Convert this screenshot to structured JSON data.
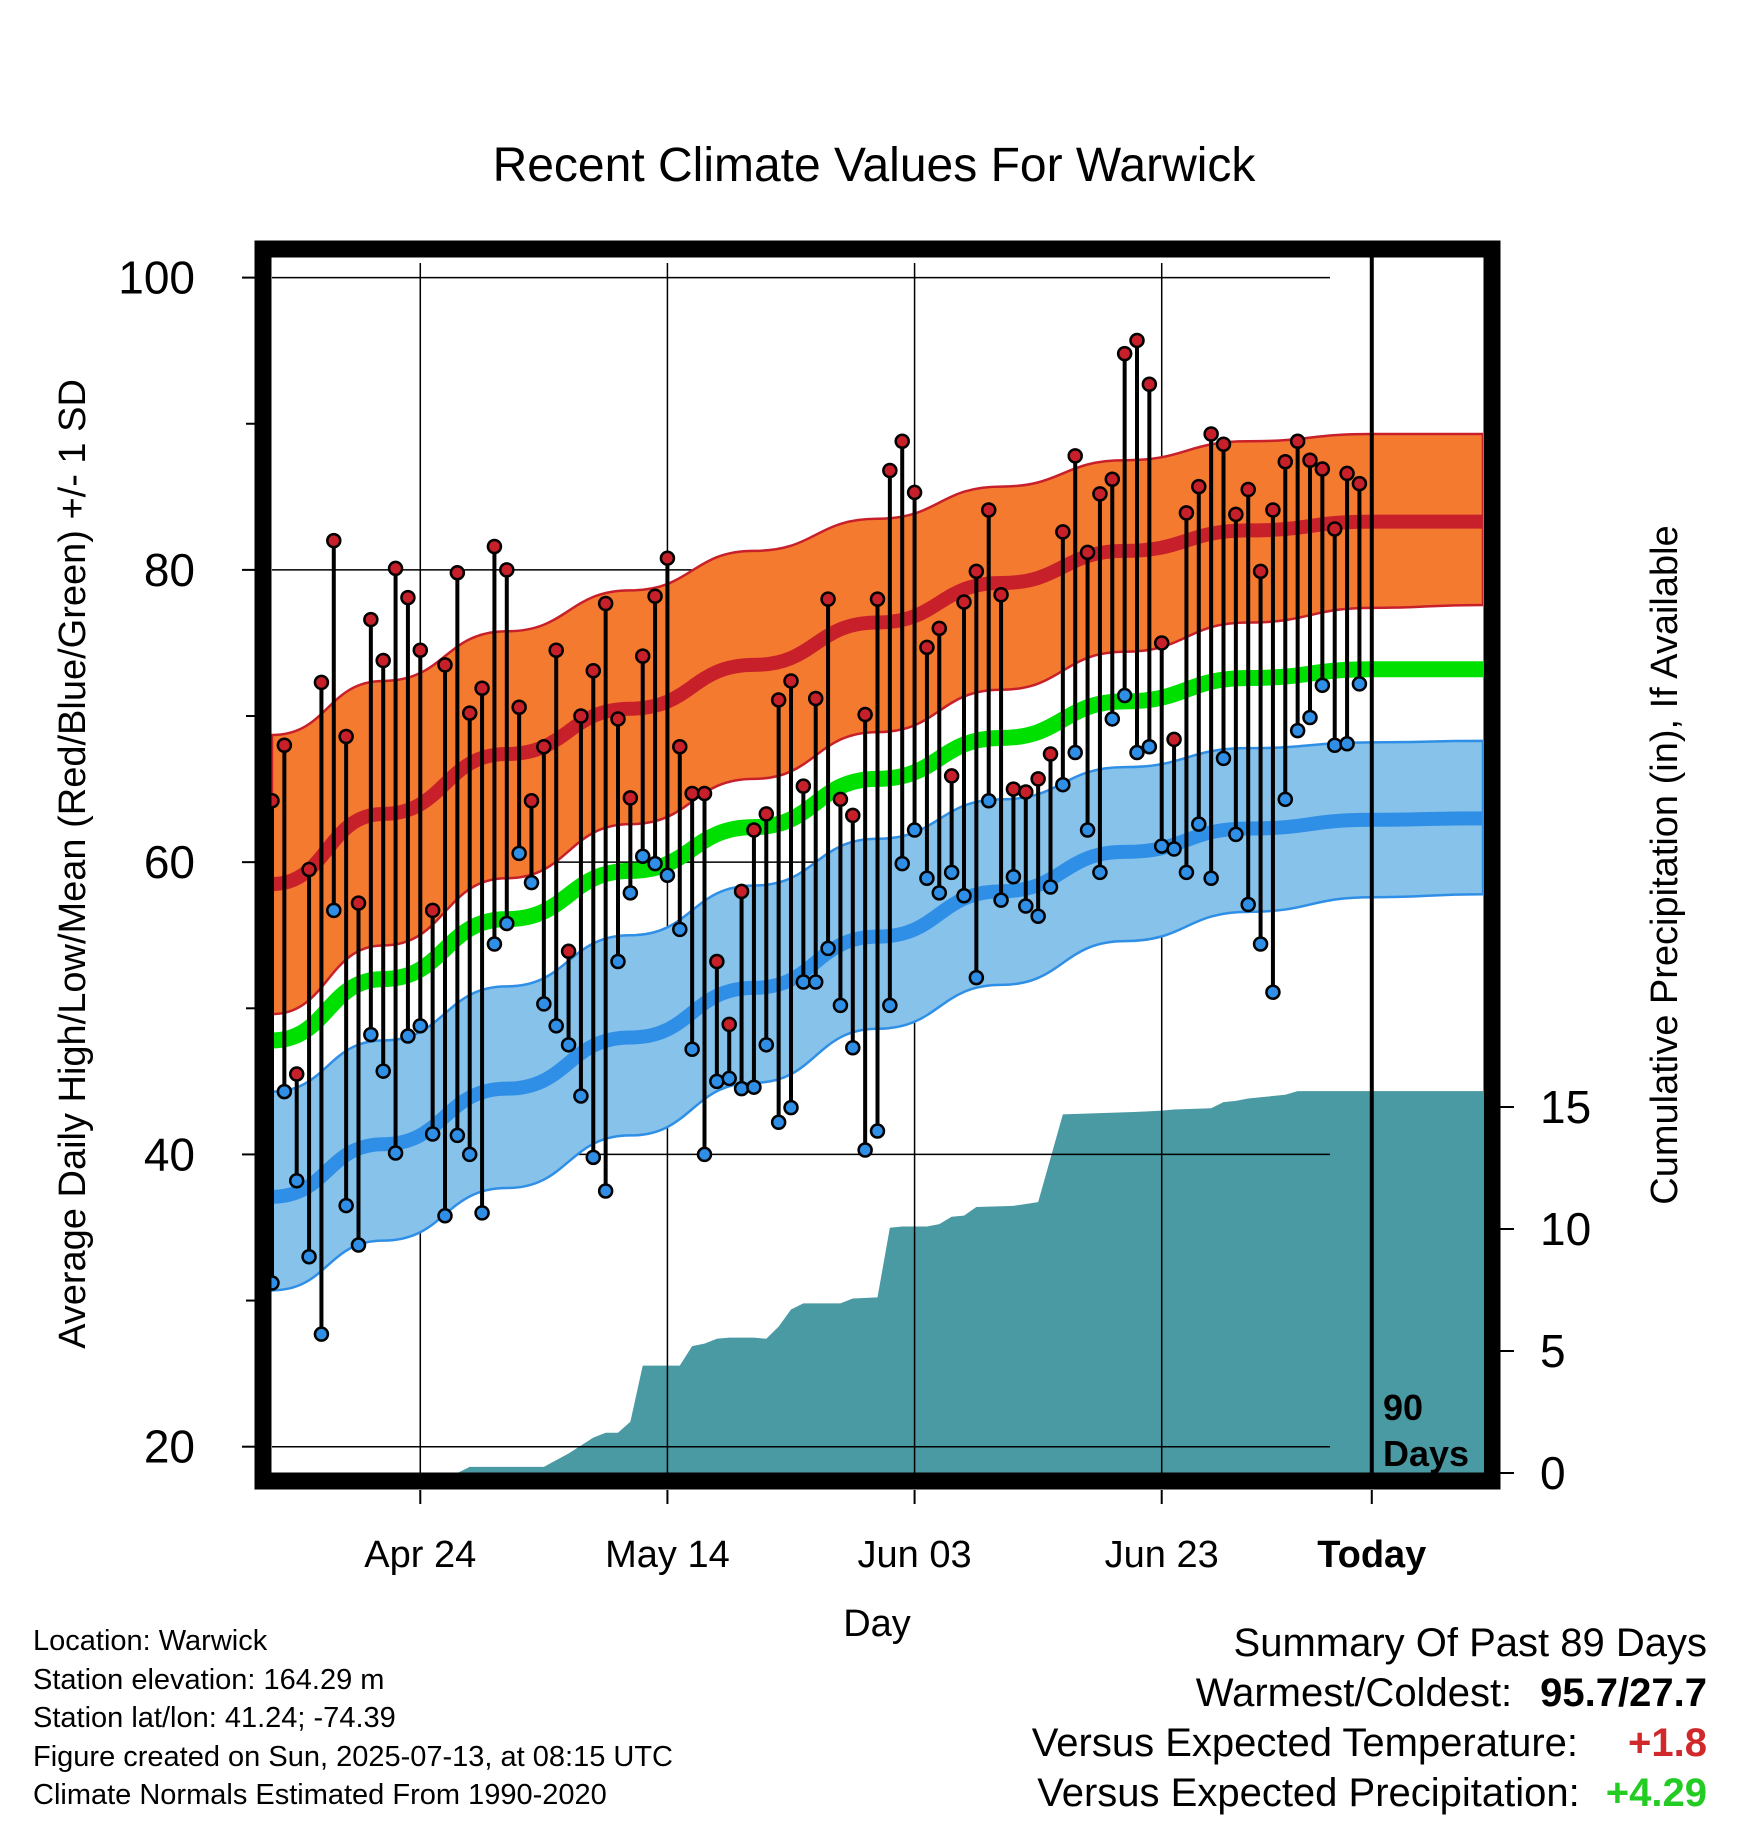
{
  "title": "Recent Climate Values For Warwick",
  "colors": {
    "high": "#c8202a",
    "low": "#2f8fe6",
    "mean": "#00e000",
    "high_band": "#f47a30",
    "low_band": "#86c2ea",
    "precip": "#4a9aa4",
    "positive_temp": "#d0282b",
    "positive_precip": "#22cc22"
  },
  "chart_data": {
    "type": "line",
    "title": "Recent Climate Values For Warwick",
    "xlabel": "Day",
    "ylabel": "Average Daily High/Low/Mean (Red/Blue/Green) +/- 1 SD",
    "y2label": "Cumulative Precipitation (in), If Available",
    "xlim_days": [
      -89,
      9
    ],
    "ylim": [
      18.2,
      101
    ],
    "y2lim": [
      0,
      47
    ],
    "x_ticks": [
      {
        "day": -77,
        "label": "Apr 24"
      },
      {
        "day": -57,
        "label": "May 14"
      },
      {
        "day": -37,
        "label": "Jun 03"
      },
      {
        "day": -17,
        "label": "Jun 23"
      },
      {
        "day": 0,
        "label": "Today"
      }
    ],
    "y_major_ticks": [
      "20",
      "40",
      "60",
      "80",
      "100"
    ],
    "y_minor_ticks": [
      30,
      50,
      70,
      90
    ],
    "y2_ticks": [
      "0",
      "5",
      "10",
      "15"
    ],
    "today_marker": {
      "day": 0,
      "label_line1": "90",
      "label_line2": "Days"
    },
    "normals": {
      "days": [
        -89,
        -80,
        -70,
        -60,
        -50,
        -40,
        -30,
        -20,
        -10,
        0,
        9
      ],
      "high_mean": [
        58.5,
        63.3,
        67.4,
        70.5,
        73.5,
        76.4,
        79.1,
        81.3,
        82.7,
        83.3,
        83.3
      ],
      "high_upper": [
        68.7,
        72.4,
        75.8,
        78.6,
        81.3,
        83.5,
        85.7,
        87.5,
        88.8,
        89.3,
        89.3
      ],
      "high_lower": [
        49.6,
        54.3,
        58.9,
        62.6,
        65.7,
        68.9,
        71.8,
        74.4,
        76.4,
        77.4,
        77.6
      ],
      "mean_line": [
        47.8,
        52.0,
        56.1,
        59.4,
        62.4,
        65.7,
        68.5,
        71.0,
        72.6,
        73.2,
        73.2
      ],
      "low_mean": [
        37.1,
        40.7,
        44.5,
        48.0,
        51.4,
        54.9,
        58.0,
        60.7,
        62.3,
        62.9,
        63.0
      ],
      "low_upper": [
        44.3,
        47.8,
        51.5,
        55.0,
        58.4,
        61.6,
        64.3,
        66.5,
        67.8,
        68.2,
        68.3
      ],
      "low_lower": [
        30.7,
        34.1,
        37.7,
        41.3,
        44.9,
        48.6,
        51.6,
        54.6,
        56.6,
        57.6,
        57.8
      ]
    },
    "daily_high": [
      64.2,
      68.0,
      45.5,
      59.5,
      72.3,
      82.0,
      68.6,
      57.2,
      76.6,
      73.8,
      80.1,
      78.1,
      74.5,
      56.7,
      73.5,
      79.8,
      70.2,
      71.9,
      81.6,
      80.0,
      70.6,
      64.2,
      67.9,
      74.5,
      53.9,
      70.0,
      73.1,
      77.7,
      69.8,
      64.4,
      74.1,
      78.2,
      80.8,
      67.9,
      64.7,
      64.7,
      53.2,
      48.9,
      58.0,
      62.2,
      63.3,
      71.1,
      72.4,
      65.2,
      71.2,
      78.0,
      64.3,
      63.2,
      70.1,
      78.0,
      86.8,
      88.8,
      85.3,
      74.7,
      76.0,
      65.9,
      77.8,
      79.9,
      84.1,
      78.3,
      65.0,
      64.8,
      65.7,
      67.4,
      82.6,
      87.8,
      81.2,
      85.2,
      86.2,
      94.8,
      95.7,
      92.7,
      75.0,
      68.4,
      83.9,
      85.7,
      89.3,
      88.6,
      83.8,
      85.5,
      79.9,
      84.1,
      87.4,
      88.8,
      87.5,
      86.9,
      82.8,
      86.6,
      85.9
    ],
    "daily_low": [
      31.2,
      44.3,
      38.2,
      33.0,
      27.7,
      56.7,
      36.5,
      33.8,
      48.2,
      45.7,
      40.1,
      48.1,
      48.8,
      41.4,
      35.8,
      41.3,
      40.0,
      36.0,
      54.4,
      55.8,
      60.6,
      58.6,
      50.3,
      48.8,
      47.5,
      44.0,
      39.8,
      37.5,
      53.2,
      57.9,
      60.4,
      59.9,
      59.1,
      55.4,
      47.2,
      40.0,
      45.0,
      45.2,
      44.5,
      44.6,
      47.5,
      42.2,
      43.2,
      51.8,
      51.8,
      54.1,
      50.2,
      47.3,
      40.3,
      41.6,
      50.2,
      59.9,
      62.2,
      58.9,
      57.9,
      59.3,
      57.7,
      52.1,
      64.2,
      57.4,
      59.0,
      57.0,
      56.3,
      58.3,
      65.3,
      67.5,
      62.2,
      59.3,
      69.8,
      71.4,
      67.5,
      67.9,
      61.1,
      60.9,
      59.3,
      62.6,
      58.9,
      67.1,
      61.9,
      57.1,
      54.4,
      51.1,
      64.3,
      69.0,
      69.9,
      72.1,
      68.0,
      68.1,
      72.2
    ],
    "precip_cumulative": [
      [
        -89,
        0
      ],
      [
        -74,
        0
      ],
      [
        -73,
        0.25
      ],
      [
        -67,
        0.25
      ],
      [
        -65,
        0.8
      ],
      [
        -63,
        1.45
      ],
      [
        -62,
        1.65
      ],
      [
        -61,
        1.65
      ],
      [
        -60,
        2.1
      ],
      [
        -59,
        4.4
      ],
      [
        -56,
        4.4
      ],
      [
        -55,
        5.2
      ],
      [
        -54,
        5.3
      ],
      [
        -53,
        5.5
      ],
      [
        -52,
        5.55
      ],
      [
        -51,
        5.55
      ],
      [
        -50,
        5.55
      ],
      [
        -49,
        5.5
      ],
      [
        -48,
        6.0
      ],
      [
        -47,
        6.7
      ],
      [
        -46,
        6.95
      ],
      [
        -43,
        6.95
      ],
      [
        -42,
        7.15
      ],
      [
        -40,
        7.2
      ],
      [
        -39,
        10.05
      ],
      [
        -38,
        10.1
      ],
      [
        -36,
        10.1
      ],
      [
        -35,
        10.2
      ],
      [
        -34,
        10.5
      ],
      [
        -33,
        10.55
      ],
      [
        -32,
        10.9
      ],
      [
        -29,
        10.95
      ],
      [
        -27,
        11.1
      ],
      [
        -25,
        14.7
      ],
      [
        -22,
        14.75
      ],
      [
        -19,
        14.8
      ],
      [
        -17,
        14.85
      ],
      [
        -16,
        14.9
      ],
      [
        -13,
        14.95
      ],
      [
        -12,
        15.2
      ],
      [
        -11,
        15.25
      ],
      [
        -10,
        15.35
      ],
      [
        -9,
        15.4
      ],
      [
        -7,
        15.5
      ],
      [
        -6,
        15.65
      ],
      [
        0,
        15.65
      ],
      [
        9,
        15.65
      ]
    ]
  },
  "info": {
    "location": "Location: Warwick",
    "elevation": "Station elevation: 164.29 m",
    "latlon": "Station lat/lon: 41.24; -74.39",
    "created": "Figure created on Sun, 2025-07-13, at 08:15 UTC",
    "normals": "Climate Normals Estimated From 1990-2020"
  },
  "summary": {
    "heading": "Summary Of Past 89 Days",
    "warmest_label": "Warmest/Coldest:",
    "warmest_value": "95.7/27.7",
    "temp_label": "Versus Expected Temperature:",
    "temp_value": "+1.8",
    "precip_label": "Versus Expected Precipitation:",
    "precip_value": "+4.29"
  }
}
